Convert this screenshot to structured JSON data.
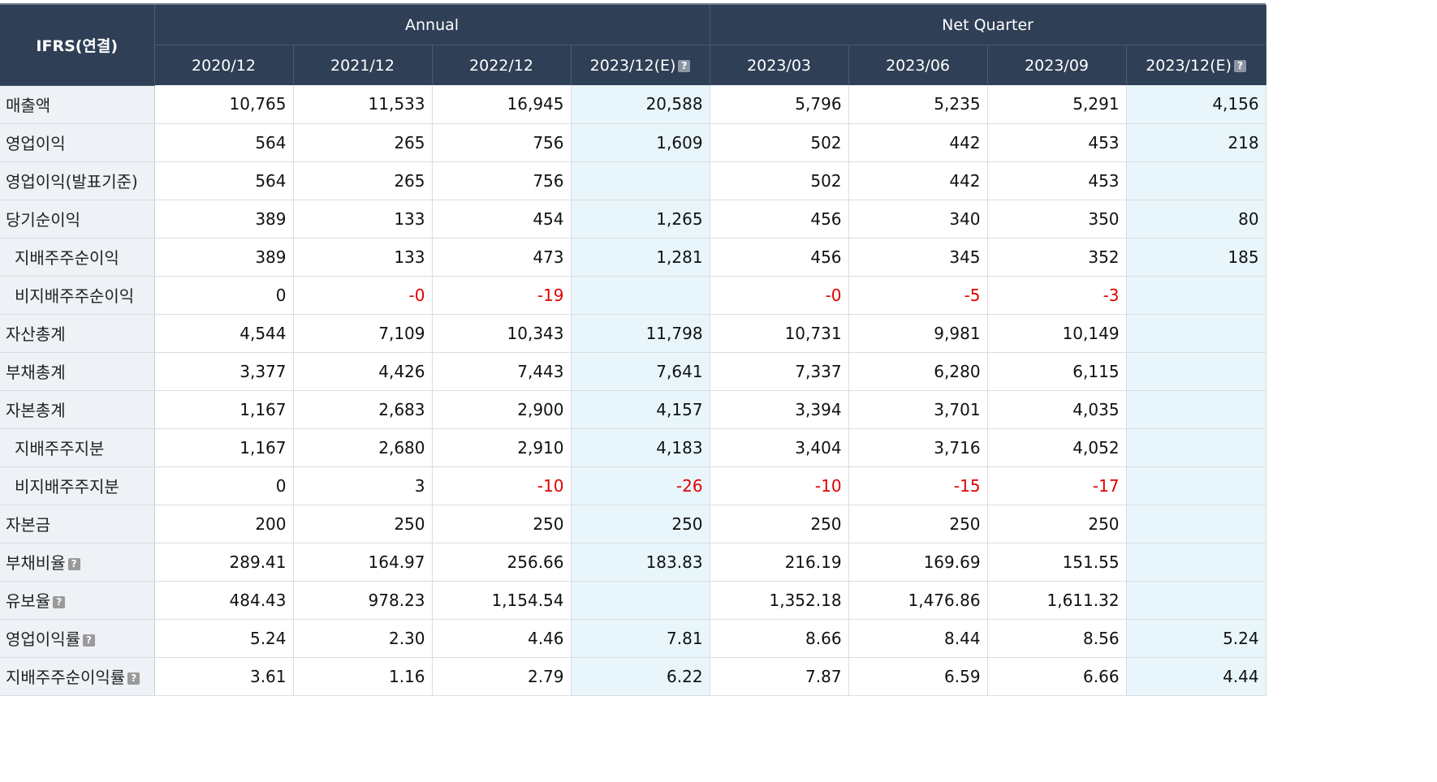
{
  "header": {
    "corner": "IFRS(연결)",
    "group_annual": "Annual",
    "group_quarter": "Net Quarter",
    "columns": [
      "2020/12",
      "2021/12",
      "2022/12",
      "2023/12(E)",
      "2023/03",
      "2023/06",
      "2023/09",
      "2023/12(E)"
    ],
    "help_glyph": "?"
  },
  "rows": [
    {
      "label": "매출액",
      "values": [
        "10,765",
        "11,533",
        "16,945",
        "20,588",
        "5,796",
        "5,235",
        "5,291",
        "4,156"
      ]
    },
    {
      "label": "영업이익",
      "values": [
        "564",
        "265",
        "756",
        "1,609",
        "502",
        "442",
        "453",
        "218"
      ]
    },
    {
      "label": "영업이익(발표기준)",
      "values": [
        "564",
        "265",
        "756",
        "",
        "502",
        "442",
        "453",
        ""
      ]
    },
    {
      "label": "당기순이익",
      "values": [
        "389",
        "133",
        "454",
        "1,265",
        "456",
        "340",
        "350",
        "80"
      ]
    },
    {
      "label": "지배주주순이익",
      "values": [
        "389",
        "133",
        "473",
        "1,281",
        "456",
        "345",
        "352",
        "185"
      ]
    },
    {
      "label": "비지배주주순이익",
      "values": [
        "0",
        "-0",
        "-19",
        "",
        "-0",
        "-5",
        "-3",
        ""
      ]
    },
    {
      "label": "자산총계",
      "values": [
        "4,544",
        "7,109",
        "10,343",
        "11,798",
        "10,731",
        "9,981",
        "10,149",
        ""
      ]
    },
    {
      "label": "부채총계",
      "values": [
        "3,377",
        "4,426",
        "7,443",
        "7,641",
        "7,337",
        "6,280",
        "6,115",
        ""
      ]
    },
    {
      "label": "자본총계",
      "values": [
        "1,167",
        "2,683",
        "2,900",
        "4,157",
        "3,394",
        "3,701",
        "4,035",
        ""
      ]
    },
    {
      "label": "지배주주지분",
      "values": [
        "1,167",
        "2,680",
        "2,910",
        "4,183",
        "3,404",
        "3,716",
        "4,052",
        ""
      ]
    },
    {
      "label": "비지배주주지분",
      "values": [
        "0",
        "3",
        "-10",
        "-26",
        "-10",
        "-15",
        "-17",
        ""
      ]
    },
    {
      "label": "자본금",
      "values": [
        "200",
        "250",
        "250",
        "250",
        "250",
        "250",
        "250",
        ""
      ]
    },
    {
      "label": "부채비율",
      "values": [
        "289.41",
        "164.97",
        "256.66",
        "183.83",
        "216.19",
        "169.69",
        "151.55",
        ""
      ]
    },
    {
      "label": "유보율",
      "values": [
        "484.43",
        "978.23",
        "1,154.54",
        "",
        "1,352.18",
        "1,476.86",
        "1,611.32",
        ""
      ]
    },
    {
      "label": "영업이익률",
      "values": [
        "5.24",
        "2.30",
        "4.46",
        "7.81",
        "8.66",
        "8.44",
        "8.56",
        "5.24"
      ]
    },
    {
      "label": "지배주주순이익률",
      "values": [
        "3.61",
        "1.16",
        "2.79",
        "6.22",
        "7.87",
        "6.59",
        "6.66",
        "4.44"
      ]
    }
  ],
  "colors": {
    "header_bg": "#2f3f55",
    "label_bg": "#eef1f5",
    "estimate_bg": "#e8f6fb",
    "negative": "#e00000"
  }
}
